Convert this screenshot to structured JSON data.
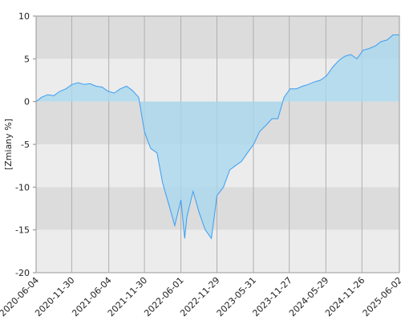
{
  "chart_data": {
    "type": "area",
    "y_label": "[Zmiany %]",
    "x": [
      "2020-06-04",
      "2020-07-01",
      "2020-08-01",
      "2020-09-01",
      "2020-10-01",
      "2020-11-01",
      "2020-12-01",
      "2021-01-01",
      "2021-02-01",
      "2021-03-01",
      "2021-04-01",
      "2021-05-01",
      "2021-06-01",
      "2021-07-01",
      "2021-08-01",
      "2021-09-01",
      "2021-10-01",
      "2021-11-01",
      "2021-11-30",
      "2021-12-15",
      "2022-01-01",
      "2022-02-01",
      "2022-03-01",
      "2022-04-01",
      "2022-05-01",
      "2022-06-01",
      "2022-06-20",
      "2022-07-01",
      "2022-08-01",
      "2022-09-01",
      "2022-10-01",
      "2022-11-01",
      "2022-11-29",
      "2022-12-15",
      "2023-01-01",
      "2023-02-01",
      "2023-03-01",
      "2023-04-01",
      "2023-05-01",
      "2023-06-01",
      "2023-07-01",
      "2023-08-01",
      "2023-09-01",
      "2023-10-01",
      "2023-11-01",
      "2023-12-01",
      "2024-01-01",
      "2024-02-01",
      "2024-03-01",
      "2024-04-01",
      "2024-05-01",
      "2024-06-01",
      "2024-07-01",
      "2024-08-01",
      "2024-09-01",
      "2024-10-01",
      "2024-11-01",
      "2024-12-01",
      "2025-01-01",
      "2025-02-01",
      "2025-03-01",
      "2025-04-01",
      "2025-05-01",
      "2025-06-02"
    ],
    "series": [
      {
        "color": "#3d9df2",
        "fill": "#a9d8ee",
        "values": [
          0,
          0.5,
          0.8,
          0.7,
          1.2,
          1.5,
          2.0,
          2.2,
          2.0,
          2.1,
          1.8,
          1.7,
          1.2,
          1.0,
          1.5,
          1.8,
          1.3,
          0.5,
          -3.5,
          -4.5,
          -5.5,
          -6.0,
          -9.5,
          -12,
          -14.5,
          -11.5,
          -16,
          -13.5,
          -10.5,
          -13,
          -15,
          -16,
          -11,
          -10.5,
          -10,
          -8,
          -7.5,
          -7,
          -6,
          -5,
          -3.5,
          -2.8,
          -2,
          -2,
          0.5,
          1.5,
          1.5,
          1.8,
          2.0,
          2.3,
          2.5,
          3.0,
          4.0,
          4.8,
          5.3,
          5.5,
          5.0,
          6.0,
          6.2,
          6.5,
          7.0,
          7.2,
          7.8,
          7.8
        ]
      }
    ],
    "xlim": [
      "2020-06-04",
      "2025-06-02"
    ],
    "xticks": [
      "2020-06-04",
      "2020-11-30",
      "2021-06-04",
      "2021-11-30",
      "2022-06-01",
      "2022-11-29",
      "2023-05-31",
      "2023-11-27",
      "2024-05-29",
      "2024-11-26",
      "2025-06-02"
    ],
    "ylim": [
      -20,
      10
    ],
    "yticks": [
      10,
      5,
      0,
      -5,
      -10,
      -15,
      -20
    ],
    "grid": true
  }
}
